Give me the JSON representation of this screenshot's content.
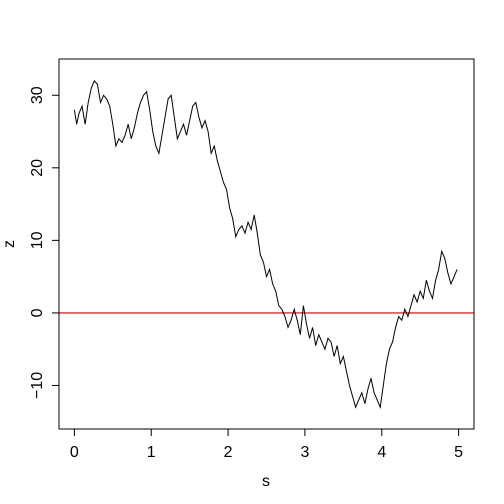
{
  "chart_data": {
    "type": "line",
    "title": "",
    "xlabel": "s",
    "ylabel": "z",
    "xlim": [
      -0.2,
      5.2
    ],
    "ylim": [
      -16,
      35
    ],
    "x_ticks": [
      0,
      1,
      2,
      3,
      4,
      5
    ],
    "x_tick_labels": [
      "0",
      "1",
      "2",
      "3",
      "4",
      "5"
    ],
    "y_ticks": [
      -10,
      0,
      10,
      20,
      30
    ],
    "y_tick_labels": [
      "−10",
      "0",
      "10",
      "20",
      "30"
    ],
    "grid": false,
    "legend": "none",
    "hline": {
      "y": 0,
      "color": "#d40000"
    },
    "series": [
      {
        "color": "#000000",
        "x": [
          0.0,
          0.03,
          0.06,
          0.1,
          0.14,
          0.18,
          0.22,
          0.26,
          0.3,
          0.34,
          0.38,
          0.42,
          0.46,
          0.5,
          0.54,
          0.58,
          0.62,
          0.66,
          0.7,
          0.74,
          0.78,
          0.82,
          0.86,
          0.9,
          0.94,
          0.98,
          1.02,
          1.06,
          1.1,
          1.14,
          1.18,
          1.22,
          1.26,
          1.3,
          1.34,
          1.38,
          1.42,
          1.46,
          1.5,
          1.54,
          1.58,
          1.62,
          1.66,
          1.7,
          1.74,
          1.78,
          1.82,
          1.86,
          1.9,
          1.94,
          1.98,
          2.02,
          2.06,
          2.1,
          2.14,
          2.18,
          2.22,
          2.26,
          2.3,
          2.34,
          2.38,
          2.42,
          2.46,
          2.5,
          2.54,
          2.58,
          2.62,
          2.66,
          2.7,
          2.74,
          2.78,
          2.82,
          2.86,
          2.9,
          2.94,
          2.98,
          3.02,
          3.06,
          3.1,
          3.14,
          3.18,
          3.22,
          3.26,
          3.3,
          3.34,
          3.38,
          3.42,
          3.46,
          3.5,
          3.54,
          3.58,
          3.62,
          3.66,
          3.7,
          3.74,
          3.78,
          3.82,
          3.86,
          3.9,
          3.94,
          3.98,
          4.02,
          4.06,
          4.1,
          4.14,
          4.18,
          4.22,
          4.26,
          4.3,
          4.34,
          4.38,
          4.42,
          4.46,
          4.5,
          4.54,
          4.58,
          4.62,
          4.66,
          4.7,
          4.74,
          4.78,
          4.82,
          4.86,
          4.9,
          4.94,
          4.98
        ],
        "y": [
          28.0,
          26.0,
          27.5,
          28.5,
          26.0,
          29.0,
          31.0,
          32.0,
          31.5,
          29.0,
          30.0,
          29.5,
          28.5,
          26.0,
          23.0,
          24.0,
          23.5,
          24.5,
          26.0,
          24.0,
          25.5,
          27.5,
          29.0,
          30.0,
          30.5,
          28.0,
          25.0,
          23.0,
          22.0,
          24.5,
          27.0,
          29.5,
          30.0,
          27.0,
          24.0,
          25.0,
          26.0,
          24.5,
          26.5,
          28.5,
          29.0,
          27.0,
          25.5,
          26.5,
          25.0,
          22.0,
          23.0,
          21.0,
          19.5,
          18.0,
          17.0,
          14.5,
          13.0,
          10.5,
          11.5,
          12.0,
          11.0,
          12.5,
          11.5,
          13.5,
          11.0,
          8.0,
          7.0,
          5.0,
          6.0,
          4.0,
          3.0,
          1.0,
          0.5,
          -0.5,
          -2.0,
          -1.0,
          0.5,
          -1.0,
          -3.0,
          1.0,
          -1.5,
          -3.5,
          -2.0,
          -4.5,
          -3.0,
          -4.0,
          -5.0,
          -3.5,
          -4.0,
          -6.0,
          -4.5,
          -7.0,
          -6.0,
          -8.0,
          -10.0,
          -11.5,
          -13.0,
          -12.0,
          -11.0,
          -12.5,
          -10.5,
          -9.0,
          -11.0,
          -12.0,
          -13.0,
          -10.0,
          -7.0,
          -5.0,
          -4.0,
          -2.0,
          -0.5,
          -1.0,
          0.5,
          -0.5,
          1.0,
          2.5,
          1.5,
          3.0,
          2.0,
          4.5,
          3.0,
          2.0,
          4.5,
          6.0,
          8.5,
          7.5,
          5.5,
          4.0,
          5.0,
          6.0
        ]
      }
    ]
  }
}
